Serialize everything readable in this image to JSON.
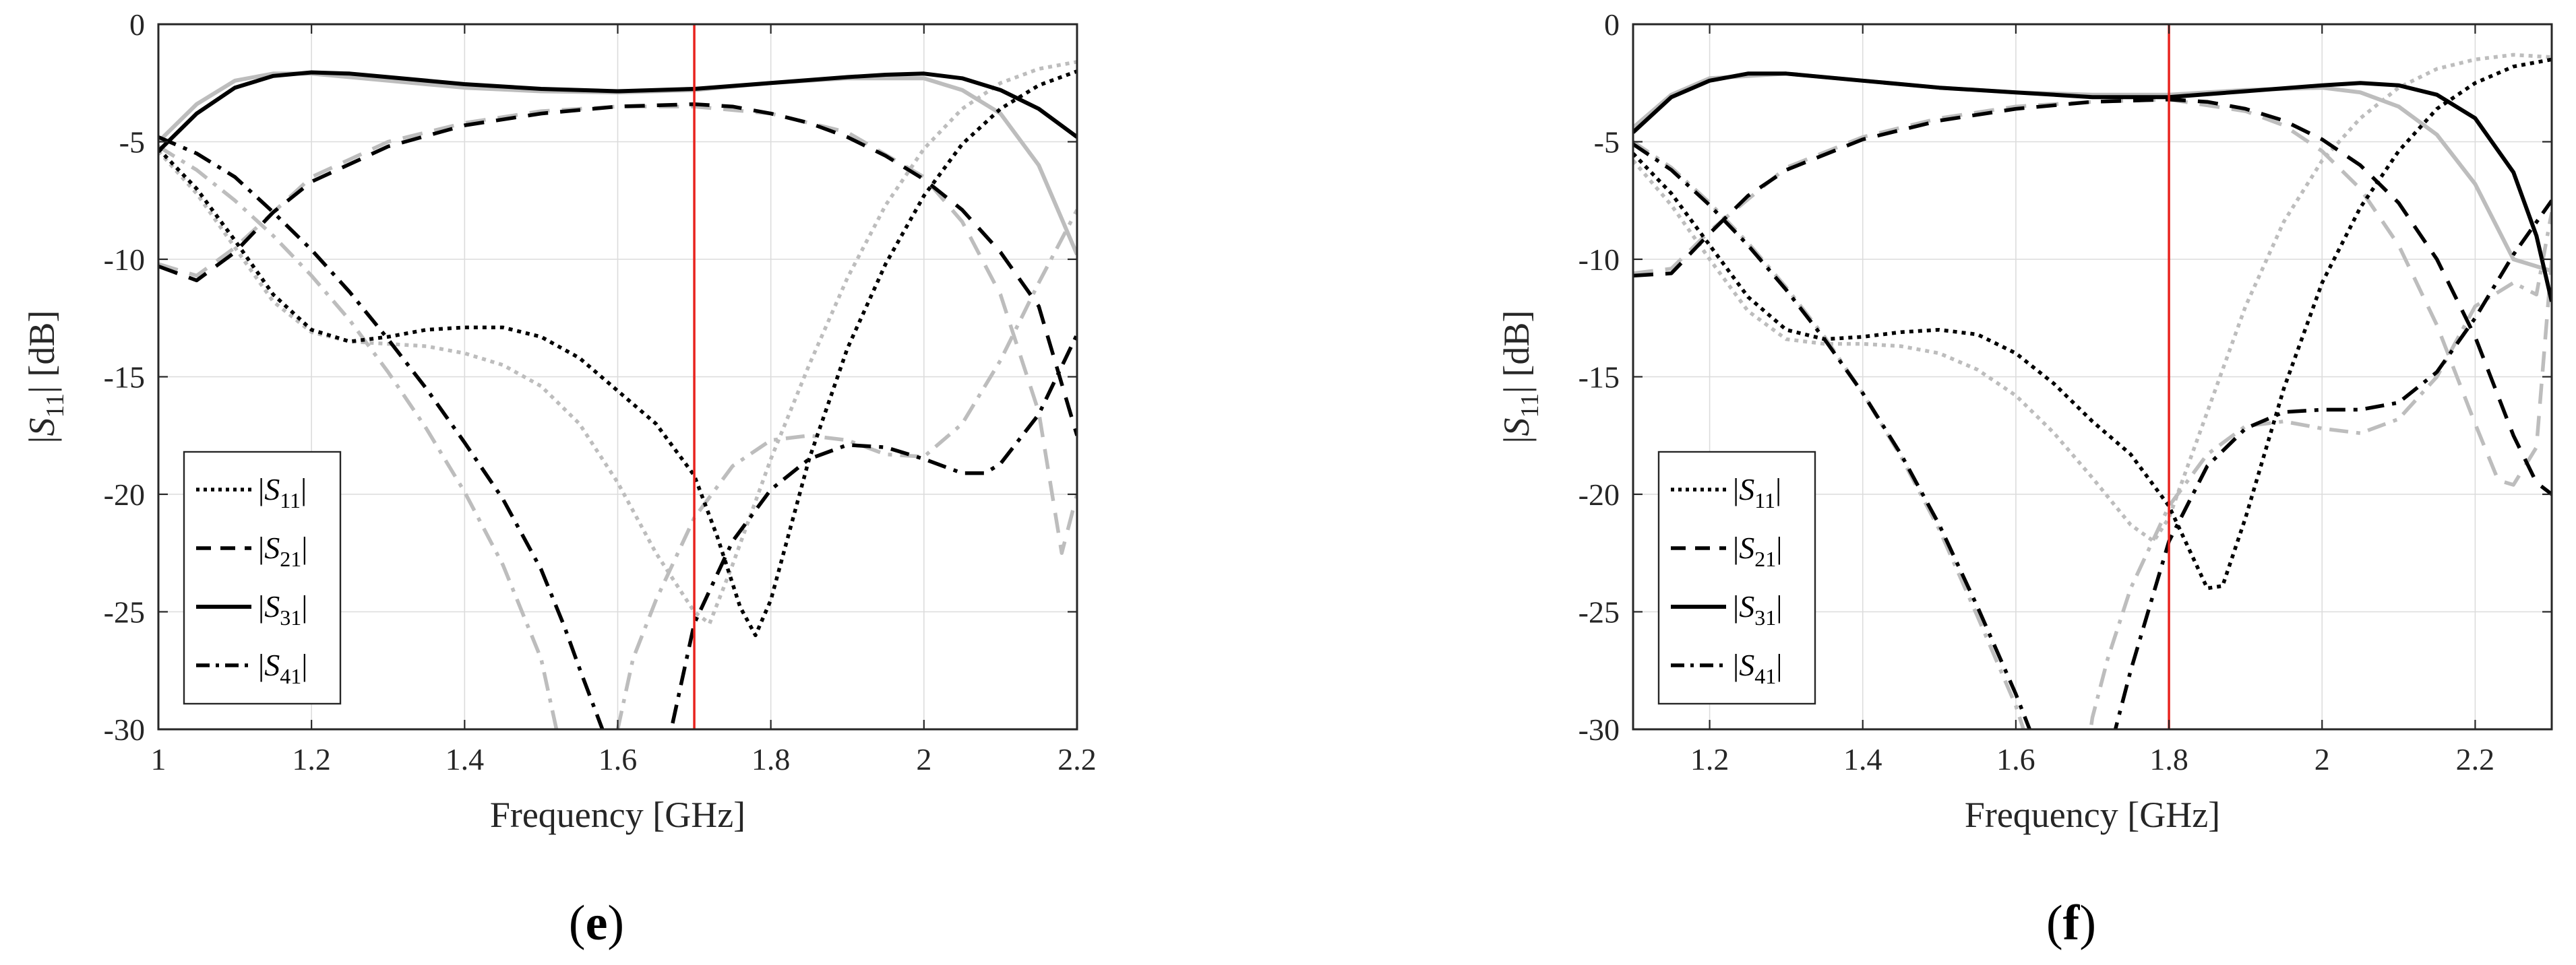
{
  "chart_data": [
    {
      "type": "line",
      "panel_label": "e",
      "xlabel": "Frequency [GHz]",
      "ylabel": "|S11| [dB]",
      "xlim": [
        1.0,
        2.2
      ],
      "ylim": [
        -30,
        0
      ],
      "xticks": [
        1,
        1.2,
        1.4,
        1.6,
        1.8,
        2,
        2.2
      ],
      "xtick_labels": [
        "1",
        "1.2",
        "1.4",
        "1.6",
        "1.8",
        "2",
        "2.2"
      ],
      "yticks": [
        0,
        -5,
        -10,
        -15,
        -20,
        -25,
        -30
      ],
      "ytick_labels": [
        "0",
        "-5",
        "-10",
        "-15",
        "-20",
        "-25",
        "-30"
      ],
      "grid": true,
      "legend_position": "bottom-left",
      "marker_line": {
        "x": 1.7,
        "color": "#e8231e"
      },
      "series": [
        {
          "name": "|S11|",
          "style": "dotted",
          "color": "#000000",
          "x": [
            1.0,
            1.05,
            1.1,
            1.15,
            1.2,
            1.25,
            1.3,
            1.35,
            1.4,
            1.45,
            1.5,
            1.55,
            1.6,
            1.65,
            1.7,
            1.73,
            1.76,
            1.78,
            1.8,
            1.85,
            1.9,
            1.95,
            2.0,
            2.05,
            2.1,
            2.15,
            2.2
          ],
          "y": [
            -5.3,
            -7.0,
            -9.2,
            -11.5,
            -13.0,
            -13.5,
            -13.3,
            -13.0,
            -12.9,
            -12.9,
            -13.3,
            -14.2,
            -15.6,
            -17.0,
            -19.2,
            -21.8,
            -24.8,
            -26.0,
            -24.5,
            -18.5,
            -13.8,
            -10.2,
            -7.3,
            -5.1,
            -3.6,
            -2.6,
            -2.0
          ]
        },
        {
          "name": "|S21|",
          "style": "dashed",
          "color": "#000000",
          "x": [
            1.0,
            1.05,
            1.1,
            1.15,
            1.2,
            1.3,
            1.4,
            1.5,
            1.6,
            1.7,
            1.75,
            1.8,
            1.85,
            1.9,
            1.95,
            2.0,
            2.05,
            2.1,
            2.15,
            2.2
          ],
          "y": [
            -10.3,
            -10.9,
            -9.7,
            -8.0,
            -6.7,
            -5.2,
            -4.3,
            -3.8,
            -3.5,
            -3.4,
            -3.5,
            -3.8,
            -4.2,
            -4.8,
            -5.6,
            -6.6,
            -7.9,
            -9.7,
            -12.0,
            -17.5
          ]
        },
        {
          "name": "|S31|",
          "style": "solid",
          "color": "#000000",
          "x": [
            1.0,
            1.05,
            1.1,
            1.15,
            1.2,
            1.25,
            1.3,
            1.4,
            1.5,
            1.6,
            1.7,
            1.8,
            1.9,
            1.95,
            2.0,
            2.05,
            2.1,
            2.15,
            2.2
          ],
          "y": [
            -5.4,
            -3.8,
            -2.7,
            -2.2,
            -2.05,
            -2.1,
            -2.25,
            -2.55,
            -2.75,
            -2.85,
            -2.75,
            -2.5,
            -2.25,
            -2.15,
            -2.1,
            -2.3,
            -2.8,
            -3.6,
            -4.8
          ]
        },
        {
          "name": "|S41|",
          "style": "dashdot",
          "color": "#000000",
          "x": [
            1.0,
            1.05,
            1.1,
            1.15,
            1.2,
            1.25,
            1.3,
            1.35,
            1.4,
            1.45,
            1.5,
            1.53,
            1.55,
            1.58,
            1.6,
            1.65,
            1.67,
            1.7,
            1.75,
            1.8,
            1.85,
            1.9,
            1.95,
            2.0,
            2.05,
            2.08,
            2.1,
            2.15,
            2.2
          ],
          "y": [
            -4.8,
            -5.5,
            -6.5,
            -8.0,
            -9.6,
            -11.4,
            -13.4,
            -15.5,
            -17.8,
            -20.2,
            -23.2,
            -25.6,
            -27.4,
            -30.0,
            -33.0,
            -34.0,
            -30.0,
            -25.5,
            -22.0,
            -19.8,
            -18.5,
            -17.9,
            -18.0,
            -18.5,
            -19.1,
            -19.1,
            -18.7,
            -16.6,
            -13.2
          ]
        },
        {
          "style": "dotted",
          "color": "#bdbdbd",
          "x": [
            1.0,
            1.05,
            1.1,
            1.15,
            1.2,
            1.25,
            1.3,
            1.35,
            1.4,
            1.45,
            1.5,
            1.55,
            1.6,
            1.65,
            1.7,
            1.72,
            1.75,
            1.8,
            1.85,
            1.9,
            1.95,
            2.0,
            2.05,
            2.1,
            2.15,
            2.2
          ],
          "y": [
            -5.4,
            -7.2,
            -9.5,
            -11.8,
            -13.1,
            -13.5,
            -13.6,
            -13.7,
            -14.0,
            -14.5,
            -15.4,
            -17.0,
            -19.5,
            -22.5,
            -25.0,
            -25.5,
            -23.0,
            -18.5,
            -14.5,
            -10.8,
            -7.7,
            -5.3,
            -3.6,
            -2.5,
            -1.9,
            -1.6
          ]
        },
        {
          "style": "dashed",
          "color": "#bdbdbd",
          "x": [
            1.0,
            1.05,
            1.1,
            1.2,
            1.3,
            1.4,
            1.5,
            1.6,
            1.7,
            1.8,
            1.9,
            2.0,
            2.05,
            2.1,
            2.15,
            2.18,
            2.2
          ],
          "y": [
            -10.2,
            -10.7,
            -9.5,
            -6.5,
            -5.0,
            -4.2,
            -3.7,
            -3.5,
            -3.5,
            -3.8,
            -4.6,
            -6.5,
            -8.4,
            -11.5,
            -16.5,
            -22.5,
            -20.0
          ]
        },
        {
          "style": "solid",
          "color": "#bdbdbd",
          "x": [
            1.0,
            1.05,
            1.1,
            1.15,
            1.2,
            1.3,
            1.4,
            1.5,
            1.6,
            1.7,
            1.8,
            1.9,
            2.0,
            2.05,
            2.1,
            2.15,
            2.2
          ],
          "y": [
            -5.0,
            -3.4,
            -2.4,
            -2.1,
            -2.1,
            -2.4,
            -2.7,
            -2.85,
            -2.9,
            -2.8,
            -2.5,
            -2.3,
            -2.3,
            -2.8,
            -3.8,
            -6.0,
            -9.8
          ]
        },
        {
          "style": "dashdot",
          "color": "#bdbdbd",
          "x": [
            1.0,
            1.05,
            1.1,
            1.15,
            1.2,
            1.25,
            1.3,
            1.35,
            1.4,
            1.45,
            1.5,
            1.52,
            1.55,
            1.58,
            1.6,
            1.62,
            1.65,
            1.7,
            1.75,
            1.8,
            1.85,
            1.9,
            1.95,
            2.0,
            2.05,
            2.1,
            2.15,
            2.2
          ],
          "y": [
            -5.2,
            -6.2,
            -7.5,
            -9.0,
            -10.7,
            -12.6,
            -14.8,
            -17.2,
            -19.9,
            -23.0,
            -27.0,
            -30.0,
            -34.0,
            -34.0,
            -30.0,
            -27.0,
            -24.5,
            -21.0,
            -18.8,
            -17.7,
            -17.5,
            -17.7,
            -18.3,
            -18.4,
            -17.0,
            -14.3,
            -11.0,
            -7.9
          ]
        }
      ]
    },
    {
      "type": "line",
      "panel_label": "f",
      "xlabel": "Frequency [GHz]",
      "ylabel": "|S11| [dB]",
      "xlim": [
        1.1,
        2.3
      ],
      "ylim": [
        -30,
        0
      ],
      "xticks": [
        1.2,
        1.4,
        1.6,
        1.8,
        2,
        2.2
      ],
      "xtick_labels": [
        "1.2",
        "1.4",
        "1.6",
        "1.8",
        "2",
        "2.2"
      ],
      "yticks": [
        0,
        -5,
        -10,
        -15,
        -20,
        -25,
        -30
      ],
      "ytick_labels": [
        "0",
        "-5",
        "-10",
        "-15",
        "-20",
        "-25",
        "-30"
      ],
      "grid": true,
      "legend_position": "bottom-left",
      "marker_line": {
        "x": 1.8,
        "color": "#e8231e"
      },
      "series": [
        {
          "name": "|S11|",
          "style": "dotted",
          "color": "#000000",
          "x": [
            1.1,
            1.15,
            1.2,
            1.25,
            1.3,
            1.35,
            1.4,
            1.45,
            1.5,
            1.55,
            1.6,
            1.65,
            1.7,
            1.75,
            1.8,
            1.85,
            1.87,
            1.9,
            1.95,
            2.0,
            2.05,
            2.1,
            2.15,
            2.2,
            2.25,
            2.3
          ],
          "y": [
            -5.5,
            -7.2,
            -9.4,
            -11.6,
            -13.0,
            -13.4,
            -13.3,
            -13.1,
            -13.0,
            -13.2,
            -14.0,
            -15.3,
            -16.9,
            -18.3,
            -20.5,
            -24.0,
            -23.9,
            -21.0,
            -15.5,
            -11.0,
            -7.8,
            -5.4,
            -3.6,
            -2.5,
            -1.8,
            -1.5
          ]
        },
        {
          "name": "|S21|",
          "style": "dashed",
          "color": "#000000",
          "x": [
            1.1,
            1.15,
            1.2,
            1.25,
            1.3,
            1.4,
            1.5,
            1.6,
            1.7,
            1.8,
            1.85,
            1.9,
            1.95,
            2.0,
            2.05,
            2.1,
            2.15,
            2.2,
            2.25,
            2.28,
            2.3
          ],
          "y": [
            -10.7,
            -10.6,
            -8.9,
            -7.3,
            -6.2,
            -4.9,
            -4.1,
            -3.6,
            -3.3,
            -3.2,
            -3.3,
            -3.6,
            -4.1,
            -4.9,
            -6.0,
            -7.6,
            -10.0,
            -13.3,
            -17.5,
            -19.5,
            -20.0
          ]
        },
        {
          "name": "|S31|",
          "style": "solid",
          "color": "#000000",
          "x": [
            1.1,
            1.15,
            1.2,
            1.25,
            1.3,
            1.4,
            1.5,
            1.6,
            1.7,
            1.8,
            1.9,
            2.0,
            2.05,
            2.1,
            2.15,
            2.2,
            2.25,
            2.28,
            2.3
          ],
          "y": [
            -4.6,
            -3.1,
            -2.4,
            -2.1,
            -2.1,
            -2.4,
            -2.7,
            -2.9,
            -3.1,
            -3.1,
            -2.85,
            -2.6,
            -2.5,
            -2.6,
            -3.0,
            -4.0,
            -6.3,
            -9.0,
            -11.8
          ]
        },
        {
          "name": "|S41|",
          "style": "dashdot",
          "color": "#000000",
          "x": [
            1.1,
            1.15,
            1.2,
            1.25,
            1.3,
            1.35,
            1.4,
            1.45,
            1.5,
            1.55,
            1.6,
            1.63,
            1.65,
            1.7,
            1.73,
            1.75,
            1.8,
            1.85,
            1.9,
            1.95,
            2.0,
            2.05,
            2.1,
            2.15,
            2.2,
            2.25,
            2.3
          ],
          "y": [
            -5.1,
            -6.2,
            -7.7,
            -9.4,
            -11.3,
            -13.4,
            -15.7,
            -18.3,
            -21.3,
            -24.8,
            -28.5,
            -31.0,
            -34.0,
            -34.0,
            -30.0,
            -27.5,
            -22.0,
            -18.8,
            -17.2,
            -16.5,
            -16.4,
            -16.4,
            -16.1,
            -14.8,
            -12.5,
            -9.8,
            -7.5
          ]
        },
        {
          "style": "dotted",
          "color": "#bdbdbd",
          "x": [
            1.1,
            1.15,
            1.2,
            1.25,
            1.3,
            1.35,
            1.4,
            1.45,
            1.5,
            1.55,
            1.6,
            1.65,
            1.7,
            1.75,
            1.78,
            1.8,
            1.85,
            1.9,
            1.95,
            2.0,
            2.05,
            2.1,
            2.15,
            2.2,
            2.25,
            2.3
          ],
          "y": [
            -5.8,
            -7.7,
            -10.0,
            -12.2,
            -13.4,
            -13.6,
            -13.6,
            -13.7,
            -14.0,
            -14.7,
            -15.8,
            -17.4,
            -19.3,
            -21.3,
            -22.0,
            -21.0,
            -16.5,
            -12.0,
            -8.4,
            -5.8,
            -4.0,
            -2.7,
            -1.9,
            -1.5,
            -1.3,
            -1.4
          ]
        },
        {
          "style": "dashed",
          "color": "#bdbdbd",
          "x": [
            1.1,
            1.15,
            1.2,
            1.3,
            1.4,
            1.5,
            1.6,
            1.7,
            1.8,
            1.9,
            1.95,
            2.0,
            2.05,
            2.1,
            2.15,
            2.2,
            2.23,
            2.25,
            2.28,
            2.3
          ],
          "y": [
            -10.6,
            -10.4,
            -8.8,
            -6.1,
            -4.8,
            -4.0,
            -3.5,
            -3.3,
            -3.2,
            -3.7,
            -4.3,
            -5.4,
            -7.0,
            -9.4,
            -12.8,
            -17.0,
            -19.4,
            -19.6,
            -18.0,
            -10.0
          ]
        },
        {
          "style": "solid",
          "color": "#bdbdbd",
          "x": [
            1.1,
            1.15,
            1.2,
            1.3,
            1.4,
            1.5,
            1.6,
            1.7,
            1.8,
            1.9,
            2.0,
            2.05,
            2.1,
            2.15,
            2.2,
            2.25,
            2.3
          ],
          "y": [
            -4.4,
            -3.0,
            -2.3,
            -2.1,
            -2.4,
            -2.7,
            -2.9,
            -3.0,
            -3.0,
            -2.8,
            -2.7,
            -2.9,
            -3.5,
            -4.7,
            -6.8,
            -10.0,
            -10.5
          ]
        },
        {
          "style": "dashdot",
          "color": "#bdbdbd",
          "x": [
            1.1,
            1.15,
            1.2,
            1.25,
            1.3,
            1.35,
            1.4,
            1.45,
            1.5,
            1.55,
            1.6,
            1.62,
            1.65,
            1.68,
            1.7,
            1.72,
            1.75,
            1.8,
            1.85,
            1.9,
            1.95,
            2.0,
            2.05,
            2.1,
            2.15,
            2.2,
            2.25,
            2.28,
            2.3
          ],
          "y": [
            -5.0,
            -6.1,
            -7.6,
            -9.3,
            -11.2,
            -13.3,
            -15.7,
            -18.4,
            -21.5,
            -25.2,
            -29.0,
            -31.0,
            -34.0,
            -34.0,
            -29.5,
            -27.0,
            -24.0,
            -20.5,
            -18.3,
            -17.1,
            -16.9,
            -17.2,
            -17.4,
            -16.8,
            -15.0,
            -12.0,
            -11.0,
            -11.5,
            -8.0
          ]
        }
      ]
    }
  ]
}
